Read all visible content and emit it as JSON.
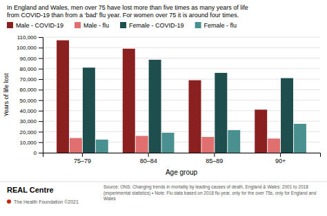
{
  "chart_data": {
    "type": "bar",
    "title": "In England and Wales, men over 75 have lost more than five times as many years of life\nfrom COVID-19 than from a ‘bad’ flu year. For women over 75 it is around four times.",
    "categories": [
      "75–79",
      "80–84",
      "85–89",
      "90+"
    ],
    "series": [
      {
        "name": "Male - COVID-19",
        "color": "#8B2020",
        "values": [
          107000,
          99000,
          69000,
          41000
        ]
      },
      {
        "name": "Male - flu",
        "color": "#E07070",
        "values": [
          14000,
          16000,
          15000,
          13500
        ]
      },
      {
        "name": "Female - COVID-19",
        "color": "#1F4E4E",
        "values": [
          81000,
          88500,
          76000,
          71000
        ]
      },
      {
        "name": "Female - flu",
        "color": "#4A9090",
        "values": [
          12500,
          19000,
          21500,
          27500
        ]
      }
    ],
    "xlabel": "Age group",
    "ylabel": "Years of life lost",
    "ylim": [
      0,
      110000
    ],
    "yticks": [
      0,
      {
        "value": 10000,
        "label": "10,000"
      },
      {
        "value": 20000,
        "label": "20,000"
      },
      {
        "value": 30000,
        "label": "30,000"
      },
      {
        "value": 40000,
        "label": "40,000"
      },
      {
        "value": 50000,
        "label": "50,000"
      },
      {
        "value": 60000,
        "label": "60,000"
      },
      {
        "value": 70000,
        "label": "70,000"
      },
      {
        "value": 80000,
        "label": "80,000"
      },
      {
        "value": 90000,
        "label": "90,000"
      },
      {
        "value": 100000,
        "label": "100,000"
      },
      {
        "value": 110000,
        "label": "110,000"
      }
    ],
    "grid": true,
    "legend": "top",
    "annotations": [
      "REAL Centre",
      "The Health Foundation ©2021",
      "Source: ONS: Changing trends in mortality by leading causes of death, England & Wales: 2001 to 2018 (experimental statistics) • Note: Flu data based on 2018 flu\nyear, only for the over 75s, only for England and Wales"
    ]
  }
}
